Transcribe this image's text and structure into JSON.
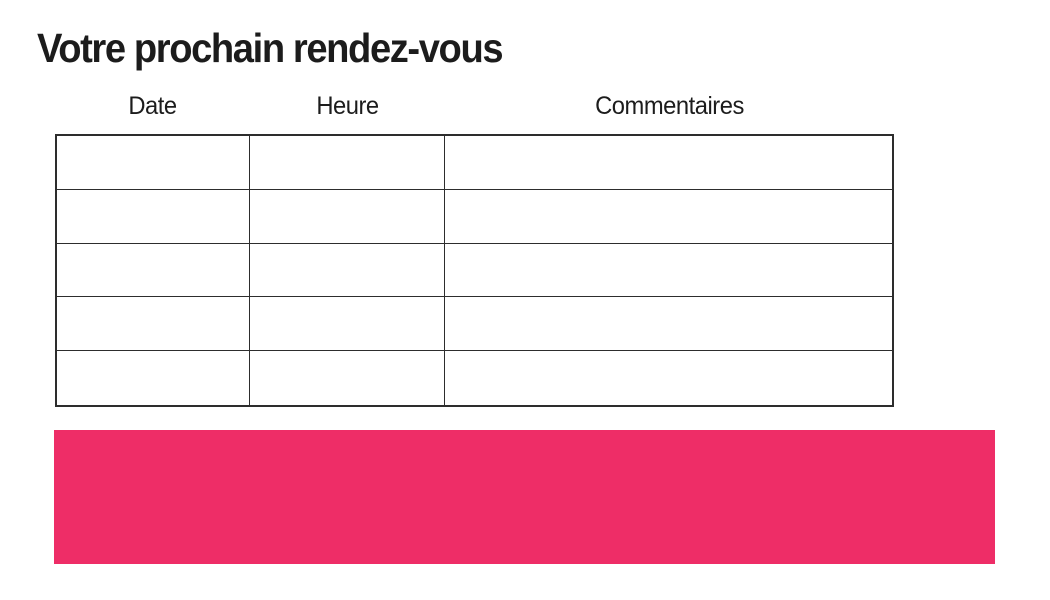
{
  "page": {
    "title": "Votre prochain rendez-vous"
  },
  "table": {
    "headers": [
      "Date",
      "Heure",
      "Commentaires"
    ],
    "rows": [
      [
        "",
        "",
        ""
      ],
      [
        "",
        "",
        ""
      ],
      [
        "",
        "",
        ""
      ],
      [
        "",
        "",
        ""
      ],
      [
        "",
        "",
        ""
      ]
    ],
    "row_count": 5
  },
  "banner": {
    "label": ""
  },
  "colors": {
    "accent": "#EE2D67",
    "border": "#2D2D2D",
    "text": "#1C1C1C"
  }
}
